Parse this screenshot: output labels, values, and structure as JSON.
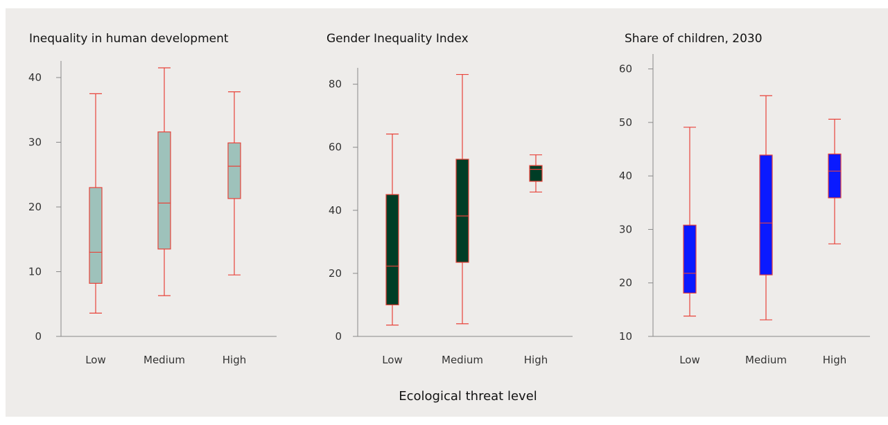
{
  "chart_data": [
    {
      "type": "box",
      "title": "Inequality in human development",
      "categories": [
        "Low",
        "Medium",
        "High"
      ],
      "yticks": [
        0,
        10,
        20,
        30,
        40
      ],
      "ylim": [
        0,
        41.5
      ],
      "box_fill": "#9ec2bb",
      "whisker_color": "#e8433a",
      "series": [
        {
          "category": "Low",
          "min": 3.6,
          "q1": 8.2,
          "median": 13.0,
          "q3": 23.0,
          "max": 37.5
        },
        {
          "category": "Medium",
          "min": 6.3,
          "q1": 13.5,
          "median": 20.6,
          "q3": 31.6,
          "max": 41.5
        },
        {
          "category": "High",
          "min": 9.5,
          "q1": 21.3,
          "median": 26.3,
          "q3": 29.9,
          "max": 37.8
        }
      ]
    },
    {
      "type": "box",
      "title": "Gender Inequality Index",
      "categories": [
        "Low",
        "Medium",
        "High"
      ],
      "yticks": [
        0,
        20,
        40,
        60,
        80
      ],
      "ylim": [
        0,
        83
      ],
      "box_fill": "#003d26",
      "whisker_color": "#e8433a",
      "series": [
        {
          "category": "Low",
          "min": 3.6,
          "q1": 10.0,
          "median": 22.3,
          "q3": 45.0,
          "max": 64.2
        },
        {
          "category": "Medium",
          "min": 4.0,
          "q1": 23.5,
          "median": 38.2,
          "q3": 56.2,
          "max": 83.1
        },
        {
          "category": "High",
          "min": 45.8,
          "q1": 49.2,
          "median": 53.0,
          "q3": 54.2,
          "max": 57.6
        }
      ]
    },
    {
      "type": "box",
      "title": "Share of children, 2030",
      "categories": [
        "Low",
        "Medium",
        "High"
      ],
      "yticks": [
        10,
        20,
        30,
        40,
        50,
        60
      ],
      "ylim": [
        10,
        61.5
      ],
      "box_fill": "#0a1aff",
      "whisker_color": "#e8433a",
      "series": [
        {
          "category": "Low",
          "min": 13.8,
          "q1": 18.1,
          "median": 21.8,
          "q3": 30.8,
          "max": 49.1
        },
        {
          "category": "Medium",
          "min": 13.1,
          "q1": 21.5,
          "median": 31.2,
          "q3": 43.9,
          "max": 55.0
        },
        {
          "category": "High",
          "min": 27.3,
          "q1": 35.9,
          "median": 40.9,
          "q3": 44.1,
          "max": 50.6
        }
      ]
    }
  ],
  "shared_xlabel": "Ecological threat level"
}
